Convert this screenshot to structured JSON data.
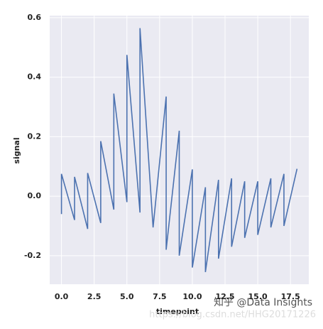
{
  "chart_data": {
    "type": "line",
    "xlabel": "timepoint",
    "ylabel": "signal",
    "series": [
      {
        "color": "#4c72b0",
        "x": [
          0,
          0,
          1,
          1,
          2,
          2,
          3,
          3,
          4,
          4,
          5,
          5,
          6,
          6,
          7,
          8,
          8,
          9,
          9,
          10,
          10,
          11,
          11,
          12,
          12,
          13,
          13,
          14,
          14,
          15,
          15,
          16,
          16,
          17,
          17,
          18
        ],
        "values": [
          -0.06,
          0.075,
          -0.08,
          0.065,
          -0.11,
          0.078,
          -0.09,
          0.185,
          -0.045,
          0.345,
          -0.02,
          0.475,
          -0.055,
          0.565,
          -0.105,
          0.335,
          -0.18,
          0.22,
          -0.2,
          0.09,
          -0.24,
          0.03,
          -0.255,
          0.055,
          -0.21,
          0.06,
          -0.17,
          0.05,
          -0.14,
          0.05,
          -0.13,
          0.06,
          -0.105,
          0.075,
          -0.1,
          0.092
        ]
      }
    ],
    "xlim": [
      -0.9,
      18.9
    ],
    "xticks": [
      {
        "value": 0,
        "label": "0.0"
      },
      2.5,
      {
        "value": 5,
        "label": "5.0"
      },
      7.5,
      {
        "value": 10,
        "label": "10.0"
      },
      12.5,
      {
        "value": 15,
        "label": "15.0"
      },
      17.5
    ],
    "ylim": [
      -0.296,
      0.607
    ],
    "yticks": [
      -0.2,
      {
        "value": 0,
        "label": "0.0"
      },
      0.2,
      0.4,
      0.6
    ],
    "grid": true,
    "annotations": [
      "知乎 @Data Insights",
      "https://blog.csdn.net/HHG20171226"
    ]
  }
}
